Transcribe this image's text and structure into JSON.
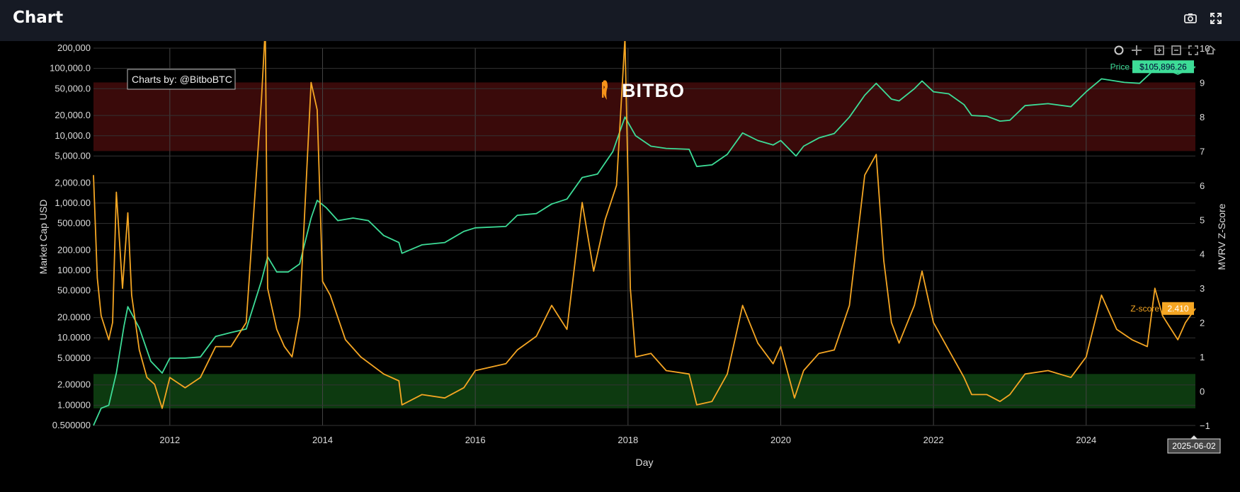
{
  "app": {
    "title": "Chart"
  },
  "toolbar_icons": [
    "camera-icon",
    "fullscreen-icon"
  ],
  "modebar_icons": [
    "zoom-icon",
    "pan-icon",
    "zoom-in-icon",
    "zoom-out-icon",
    "autoscale-icon",
    "reset-axes-icon"
  ],
  "watermark": "BITBO",
  "credit": "Charts by: @BitboBTC",
  "colors": {
    "price": "#3ddc97",
    "zscore": "#f5a623",
    "red_band": "#3a0a0a",
    "green_band": "#0d3a10"
  },
  "chart_data": {
    "type": "line",
    "xlabel": "Day",
    "ylabel": "Market Cap USD",
    "y2label": "MVRV Z-Score",
    "xlim": [
      2011.0,
      2025.43
    ],
    "x_ticks": [
      "2012",
      "2014",
      "2016",
      "2018",
      "2020",
      "2022",
      "2024"
    ],
    "y_log": true,
    "ylim": [
      0.5,
      200000
    ],
    "y_ticks": [
      {
        "v": 200000,
        "label": "200,000"
      },
      {
        "v": 100000,
        "label": "100,000.0"
      },
      {
        "v": 50000,
        "label": "50,000.0"
      },
      {
        "v": 20000,
        "label": "20,000.0"
      },
      {
        "v": 10000,
        "label": "10,000.0"
      },
      {
        "v": 5000,
        "label": "5,000.00"
      },
      {
        "v": 2000,
        "label": "2,000.00"
      },
      {
        "v": 1000,
        "label": "1,000.00"
      },
      {
        "v": 500,
        "label": "500.000"
      },
      {
        "v": 200,
        "label": "200.000"
      },
      {
        "v": 100,
        "label": "100.000"
      },
      {
        "v": 50,
        "label": "50.0000"
      },
      {
        "v": 20,
        "label": "20.0000"
      },
      {
        "v": 10,
        "label": "10.0000"
      },
      {
        "v": 5,
        "label": "5.00000"
      },
      {
        "v": 2,
        "label": "2.00000"
      },
      {
        "v": 1,
        "label": "1.00000"
      },
      {
        "v": 0.5,
        "label": "0.500000"
      }
    ],
    "y2lim": [
      -1,
      10
    ],
    "y2_ticks": [
      "10",
      "9",
      "8",
      "7",
      "6",
      "5",
      "4",
      "3",
      "2",
      "1",
      "0",
      "−1"
    ],
    "bands": [
      {
        "name": "red",
        "axis": "y2",
        "from": 7,
        "to": 9
      },
      {
        "name": "green",
        "axis": "y2",
        "from": -0.5,
        "to": 0.5
      }
    ],
    "series": [
      {
        "name": "Price",
        "axis": "y",
        "last_label": "$105,896.26",
        "points": [
          [
            2011.0,
            0.5
          ],
          [
            2011.1,
            0.9
          ],
          [
            2011.2,
            1.0
          ],
          [
            2011.3,
            3.0
          ],
          [
            2011.4,
            15
          ],
          [
            2011.45,
            29
          ],
          [
            2011.6,
            14
          ],
          [
            2011.75,
            4.5
          ],
          [
            2011.9,
            3.0
          ],
          [
            2012.0,
            5.0
          ],
          [
            2012.2,
            5.0
          ],
          [
            2012.4,
            5.2
          ],
          [
            2012.6,
            10.5
          ],
          [
            2012.8,
            12.0
          ],
          [
            2013.0,
            13.5
          ],
          [
            2013.2,
            70
          ],
          [
            2013.28,
            160
          ],
          [
            2013.4,
            95
          ],
          [
            2013.55,
            95
          ],
          [
            2013.7,
            125
          ],
          [
            2013.85,
            600
          ],
          [
            2013.93,
            1100
          ],
          [
            2014.05,
            850
          ],
          [
            2014.2,
            550
          ],
          [
            2014.4,
            600
          ],
          [
            2014.6,
            550
          ],
          [
            2014.8,
            330
          ],
          [
            2015.0,
            260
          ],
          [
            2015.04,
            180
          ],
          [
            2015.3,
            240
          ],
          [
            2015.6,
            260
          ],
          [
            2015.85,
            380
          ],
          [
            2016.0,
            430
          ],
          [
            2016.4,
            450
          ],
          [
            2016.55,
            660
          ],
          [
            2016.8,
            700
          ],
          [
            2017.0,
            970
          ],
          [
            2017.2,
            1150
          ],
          [
            2017.4,
            2400
          ],
          [
            2017.6,
            2700
          ],
          [
            2017.8,
            5800
          ],
          [
            2017.96,
            19000
          ],
          [
            2018.1,
            10000
          ],
          [
            2018.3,
            7000
          ],
          [
            2018.5,
            6500
          ],
          [
            2018.8,
            6300
          ],
          [
            2018.9,
            3500
          ],
          [
            2019.1,
            3700
          ],
          [
            2019.3,
            5300
          ],
          [
            2019.5,
            11000
          ],
          [
            2019.7,
            8500
          ],
          [
            2019.9,
            7300
          ],
          [
            2020.0,
            8500
          ],
          [
            2020.2,
            5000
          ],
          [
            2020.3,
            7000
          ],
          [
            2020.5,
            9300
          ],
          [
            2020.7,
            10800
          ],
          [
            2020.9,
            19000
          ],
          [
            2021.1,
            40000
          ],
          [
            2021.25,
            60000
          ],
          [
            2021.45,
            35000
          ],
          [
            2021.55,
            33000
          ],
          [
            2021.75,
            50000
          ],
          [
            2021.85,
            65000
          ],
          [
            2022.0,
            45000
          ],
          [
            2022.2,
            42000
          ],
          [
            2022.4,
            29000
          ],
          [
            2022.5,
            20000
          ],
          [
            2022.7,
            19500
          ],
          [
            2022.87,
            16500
          ],
          [
            2023.0,
            17000
          ],
          [
            2023.2,
            28000
          ],
          [
            2023.5,
            30000
          ],
          [
            2023.8,
            27000
          ],
          [
            2024.0,
            45000
          ],
          [
            2024.2,
            70000
          ],
          [
            2024.5,
            62000
          ],
          [
            2024.7,
            60000
          ],
          [
            2024.9,
            98000
          ],
          [
            2025.0,
            102000
          ],
          [
            2025.2,
            82000
          ],
          [
            2025.43,
            105896
          ]
        ]
      },
      {
        "name": "Z-score",
        "axis": "y2",
        "last_label": "2.410",
        "points": [
          [
            2011.0,
            6.3
          ],
          [
            2011.05,
            3.3
          ],
          [
            2011.1,
            2.2
          ],
          [
            2011.2,
            1.5
          ],
          [
            2011.25,
            2.0
          ],
          [
            2011.3,
            5.8
          ],
          [
            2011.38,
            3.0
          ],
          [
            2011.45,
            5.2
          ],
          [
            2011.5,
            2.8
          ],
          [
            2011.6,
            1.2
          ],
          [
            2011.7,
            0.4
          ],
          [
            2011.8,
            0.2
          ],
          [
            2011.9,
            -0.5
          ],
          [
            2012.0,
            0.4
          ],
          [
            2012.2,
            0.1
          ],
          [
            2012.4,
            0.4
          ],
          [
            2012.6,
            1.3
          ],
          [
            2012.8,
            1.3
          ],
          [
            2013.0,
            2.0
          ],
          [
            2013.2,
            8.5
          ],
          [
            2013.25,
            10.6
          ],
          [
            2013.28,
            3.0
          ],
          [
            2013.4,
            1.8
          ],
          [
            2013.5,
            1.3
          ],
          [
            2013.6,
            1.0
          ],
          [
            2013.7,
            2.2
          ],
          [
            2013.85,
            9.0
          ],
          [
            2013.93,
            8.2
          ],
          [
            2014.0,
            3.2
          ],
          [
            2014.1,
            2.8
          ],
          [
            2014.3,
            1.5
          ],
          [
            2014.5,
            1.0
          ],
          [
            2014.8,
            0.5
          ],
          [
            2015.0,
            0.3
          ],
          [
            2015.04,
            -0.4
          ],
          [
            2015.3,
            -0.1
          ],
          [
            2015.6,
            -0.2
          ],
          [
            2015.85,
            0.1
          ],
          [
            2016.0,
            0.6
          ],
          [
            2016.4,
            0.8
          ],
          [
            2016.55,
            1.2
          ],
          [
            2016.8,
            1.6
          ],
          [
            2017.0,
            2.5
          ],
          [
            2017.2,
            1.8
          ],
          [
            2017.4,
            5.5
          ],
          [
            2017.55,
            3.5
          ],
          [
            2017.7,
            5.0
          ],
          [
            2017.85,
            6.0
          ],
          [
            2017.96,
            10.3
          ],
          [
            2018.03,
            3.0
          ],
          [
            2018.1,
            1.0
          ],
          [
            2018.3,
            1.1
          ],
          [
            2018.5,
            0.6
          ],
          [
            2018.8,
            0.5
          ],
          [
            2018.9,
            -0.4
          ],
          [
            2019.1,
            -0.3
          ],
          [
            2019.3,
            0.5
          ],
          [
            2019.5,
            2.5
          ],
          [
            2019.7,
            1.4
          ],
          [
            2019.9,
            0.8
          ],
          [
            2020.0,
            1.3
          ],
          [
            2020.18,
            -0.2
          ],
          [
            2020.3,
            0.6
          ],
          [
            2020.5,
            1.1
          ],
          [
            2020.7,
            1.2
          ],
          [
            2020.9,
            2.5
          ],
          [
            2021.1,
            6.3
          ],
          [
            2021.25,
            6.9
          ],
          [
            2021.35,
            3.8
          ],
          [
            2021.45,
            2.0
          ],
          [
            2021.55,
            1.4
          ],
          [
            2021.75,
            2.5
          ],
          [
            2021.85,
            3.5
          ],
          [
            2022.0,
            2.0
          ],
          [
            2022.2,
            1.2
          ],
          [
            2022.4,
            0.4
          ],
          [
            2022.5,
            -0.1
          ],
          [
            2022.7,
            -0.1
          ],
          [
            2022.87,
            -0.3
          ],
          [
            2023.0,
            -0.1
          ],
          [
            2023.2,
            0.5
          ],
          [
            2023.5,
            0.6
          ],
          [
            2023.8,
            0.4
          ],
          [
            2024.0,
            1.0
          ],
          [
            2024.2,
            2.8
          ],
          [
            2024.4,
            1.8
          ],
          [
            2024.6,
            1.5
          ],
          [
            2024.8,
            1.3
          ],
          [
            2024.9,
            3.0
          ],
          [
            2025.0,
            2.2
          ],
          [
            2025.2,
            1.5
          ],
          [
            2025.3,
            2.0
          ],
          [
            2025.43,
            2.41
          ]
        ]
      }
    ],
    "hover_date": "2025-06-02"
  }
}
